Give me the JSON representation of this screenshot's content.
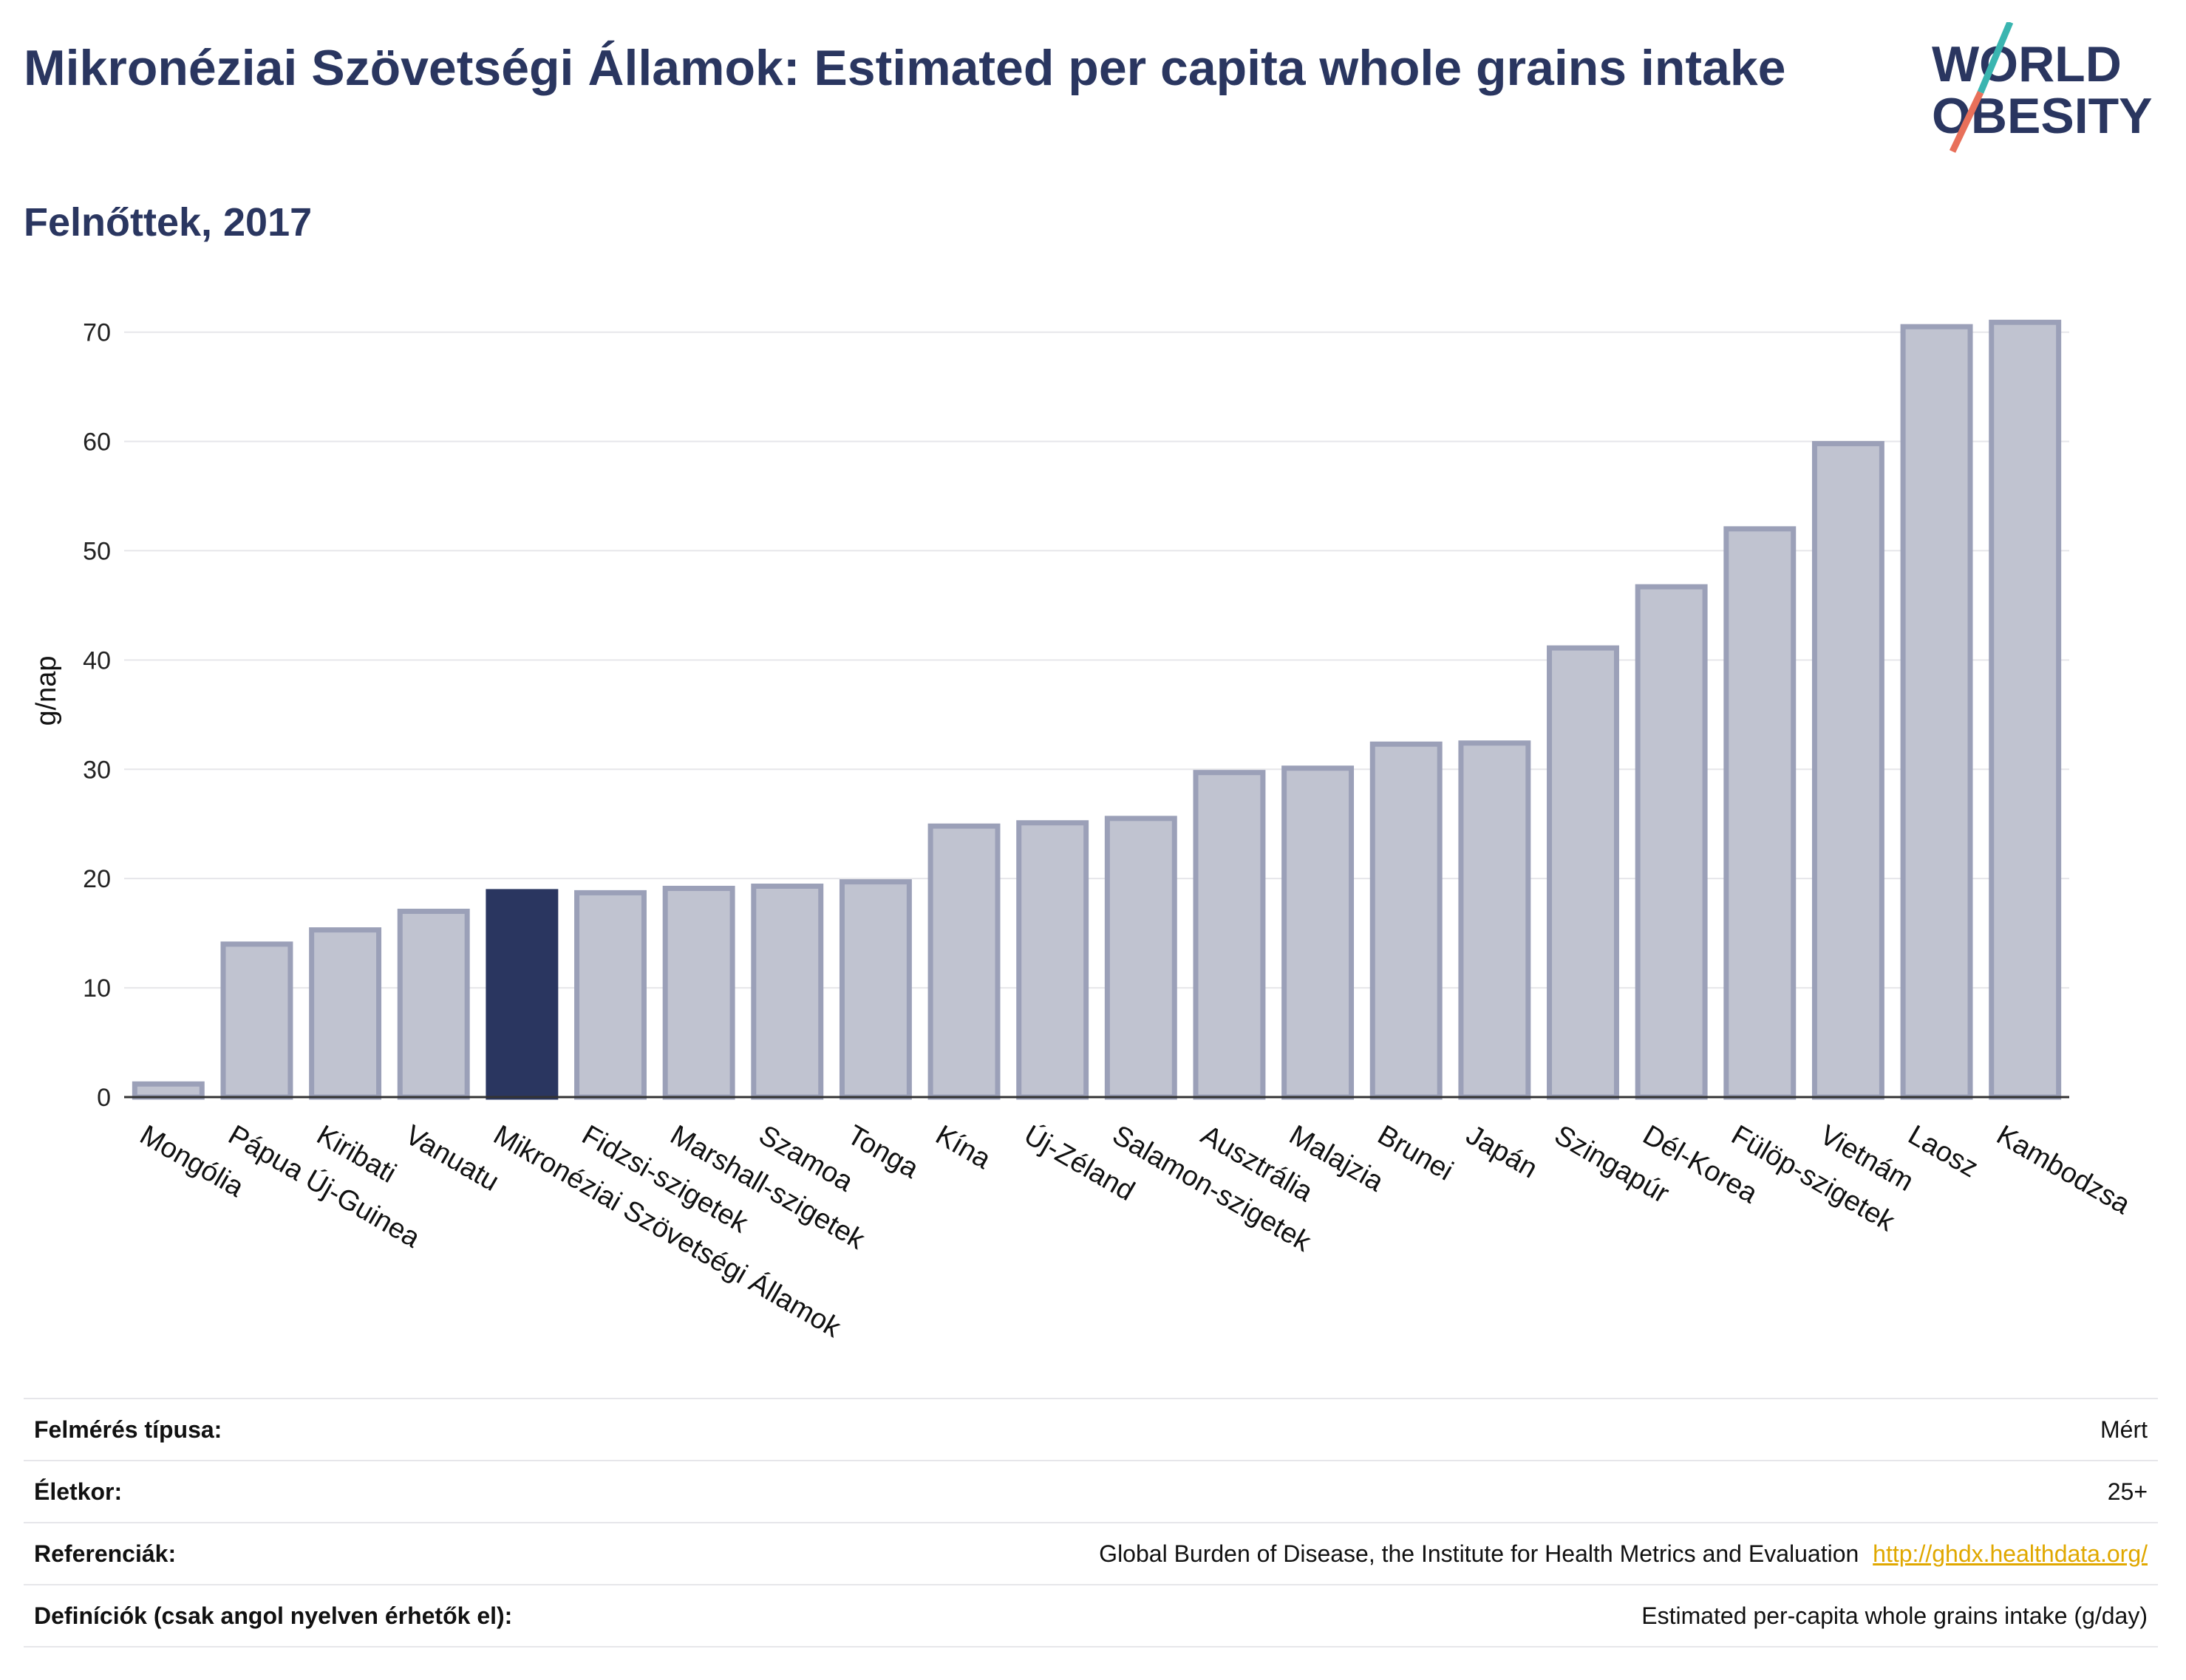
{
  "header": {
    "title": "Mikronéziai Szövetségi Államok: Estimated per capita whole grains intake",
    "subtitle": "Felnőttek, 2017",
    "logo_line1": "WORLD",
    "logo_line2": "OBESITY"
  },
  "chart_data": {
    "type": "bar",
    "ylabel": "g/nap",
    "ylim": [
      0,
      72
    ],
    "yticks": [
      0,
      10,
      20,
      30,
      40,
      50,
      60,
      70
    ],
    "grid": true,
    "highlight_index": 4,
    "colors": {
      "bar": "#c0c3d0",
      "bar_stroke": "#9ba0b8",
      "highlight": "#2a3660",
      "grid": "#e6e6ea",
      "axis": "#333333"
    },
    "categories": [
      "Mongólia",
      "Pápua Új-Guinea",
      "Kiribati",
      "Vanuatu",
      "Mikronéziai Szövetségi Államok",
      "Fidzsi-szigetek",
      "Marshall-szigetek",
      "Szamoa",
      "Tonga",
      "Kína",
      "Új-Zéland",
      "Salamon-szigetek",
      "Ausztrália",
      "Malajzia",
      "Brunei",
      "Japán",
      "Szingapúr",
      "Dél-Korea",
      "Fülöp-szigetek",
      "Vietnám",
      "Laosz",
      "Kambodzsa"
    ],
    "values": [
      1.2,
      14,
      15.3,
      17,
      18.8,
      18.7,
      19.1,
      19.3,
      19.7,
      24.8,
      25.1,
      25.5,
      29.7,
      30.1,
      32.3,
      32.4,
      41.1,
      46.7,
      52,
      59.8,
      70.5,
      70.9
    ]
  },
  "meta": {
    "rows": [
      {
        "label": "Felmérés típusa:",
        "value": "Mért"
      },
      {
        "label": "Életkor:",
        "value": "25+"
      },
      {
        "label": "Referenciák:",
        "value": "Global Burden of Disease, the Institute for Health Metrics and Evaluation",
        "link": "http://ghdx.healthdata.org/"
      },
      {
        "label": "Definíciók (csak angol nyelven érhetők el):",
        "value": "Estimated per-capita whole grains intake (g/day)"
      }
    ]
  }
}
